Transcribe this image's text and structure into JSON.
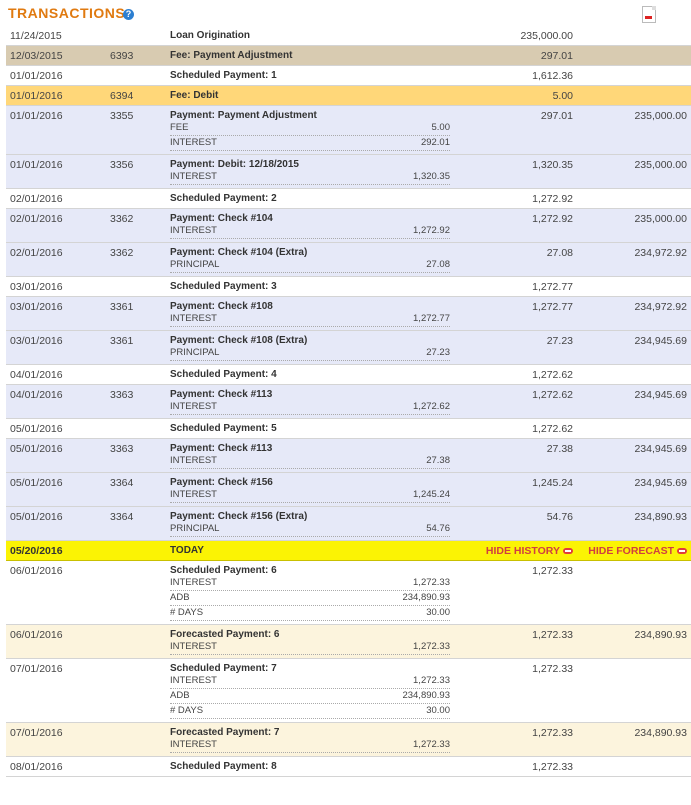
{
  "header": {
    "title": "TRANSACTIONS",
    "help_glyph": "?"
  },
  "today_row": {
    "date": "05/20/2016",
    "label": "TODAY",
    "hide_history": "HIDE HISTORY",
    "hide_forecast": "HIDE FORECAST"
  },
  "rows_before": [
    {
      "date": "11/24/2015",
      "ref": "",
      "desc": "Loan Origination",
      "amount": "235,000.00",
      "balance": "",
      "kind": "sched",
      "sub": []
    },
    {
      "date": "12/03/2015",
      "ref": "6393",
      "desc": "Fee: Payment Adjustment",
      "amount": "297.01",
      "balance": "",
      "kind": "fee",
      "sub": []
    },
    {
      "date": "01/01/2016",
      "ref": "",
      "desc": "Scheduled Payment: 1",
      "amount": "1,612.36",
      "balance": "",
      "kind": "sched",
      "sub": []
    },
    {
      "date": "01/01/2016",
      "ref": "6394",
      "desc": "Fee: Debit",
      "amount": "5.00",
      "balance": "",
      "kind": "feeorange",
      "sub": []
    },
    {
      "date": "01/01/2016",
      "ref": "3355",
      "desc": "Payment: Payment Adjustment",
      "amount": "297.01",
      "balance": "235,000.00",
      "kind": "actual",
      "sub": [
        {
          "label": "FEE",
          "value": "5.00"
        },
        {
          "label": "INTEREST",
          "value": "292.01"
        }
      ]
    },
    {
      "date": "01/01/2016",
      "ref": "3356",
      "desc": "Payment: Debit: 12/18/2015",
      "amount": "1,320.35",
      "balance": "235,000.00",
      "kind": "actual",
      "sub": [
        {
          "label": "INTEREST",
          "value": "1,320.35"
        }
      ]
    },
    {
      "date": "02/01/2016",
      "ref": "",
      "desc": "Scheduled Payment: 2",
      "amount": "1,272.92",
      "balance": "",
      "kind": "sched",
      "sub": []
    },
    {
      "date": "02/01/2016",
      "ref": "3362",
      "desc": "Payment: Check #104",
      "amount": "1,272.92",
      "balance": "235,000.00",
      "kind": "actual",
      "sub": [
        {
          "label": "INTEREST",
          "value": "1,272.92"
        }
      ]
    },
    {
      "date": "02/01/2016",
      "ref": "3362",
      "desc": "Payment: Check #104 (Extra)",
      "amount": "27.08",
      "balance": "234,972.92",
      "kind": "actual",
      "sub": [
        {
          "label": "PRINCIPAL",
          "value": "27.08"
        }
      ]
    },
    {
      "date": "03/01/2016",
      "ref": "",
      "desc": "Scheduled Payment: 3",
      "amount": "1,272.77",
      "balance": "",
      "kind": "sched",
      "sub": []
    },
    {
      "date": "03/01/2016",
      "ref": "3361",
      "desc": "Payment: Check #108",
      "amount": "1,272.77",
      "balance": "234,972.92",
      "kind": "actual",
      "sub": [
        {
          "label": "INTEREST",
          "value": "1,272.77"
        }
      ]
    },
    {
      "date": "03/01/2016",
      "ref": "3361",
      "desc": "Payment: Check #108 (Extra)",
      "amount": "27.23",
      "balance": "234,945.69",
      "kind": "actual",
      "sub": [
        {
          "label": "PRINCIPAL",
          "value": "27.23"
        }
      ]
    },
    {
      "date": "04/01/2016",
      "ref": "",
      "desc": "Scheduled Payment: 4",
      "amount": "1,272.62",
      "balance": "",
      "kind": "sched",
      "sub": []
    },
    {
      "date": "04/01/2016",
      "ref": "3363",
      "desc": "Payment: Check #113",
      "amount": "1,272.62",
      "balance": "234,945.69",
      "kind": "actual",
      "sub": [
        {
          "label": "INTEREST",
          "value": "1,272.62"
        }
      ]
    },
    {
      "date": "05/01/2016",
      "ref": "",
      "desc": "Scheduled Payment: 5",
      "amount": "1,272.62",
      "balance": "",
      "kind": "sched",
      "sub": []
    },
    {
      "date": "05/01/2016",
      "ref": "3363",
      "desc": "Payment: Check #113",
      "amount": "27.38",
      "balance": "234,945.69",
      "kind": "actual",
      "sub": [
        {
          "label": "INTEREST",
          "value": "27.38"
        }
      ]
    },
    {
      "date": "05/01/2016",
      "ref": "3364",
      "desc": "Payment: Check #156",
      "amount": "1,245.24",
      "balance": "234,945.69",
      "kind": "actual",
      "sub": [
        {
          "label": "INTEREST",
          "value": "1,245.24"
        }
      ]
    },
    {
      "date": "05/01/2016",
      "ref": "3364",
      "desc": "Payment: Check #156 (Extra)",
      "amount": "54.76",
      "balance": "234,890.93",
      "kind": "actual",
      "sub": [
        {
          "label": "PRINCIPAL",
          "value": "54.76"
        }
      ]
    }
  ],
  "rows_after": [
    {
      "date": "06/01/2016",
      "ref": "",
      "desc": "Scheduled Payment: 6",
      "amount": "1,272.33",
      "balance": "",
      "kind": "sched",
      "sub": [
        {
          "label": "INTEREST",
          "value": "1,272.33"
        },
        {
          "label": "ADB",
          "value": "234,890.93"
        },
        {
          "label": "# DAYS",
          "value": "30.00"
        }
      ]
    },
    {
      "date": "06/01/2016",
      "ref": "",
      "desc": "Forecasted Payment: 6",
      "amount": "1,272.33",
      "balance": "234,890.93",
      "kind": "forecast",
      "sub": [
        {
          "label": "INTEREST",
          "value": "1,272.33"
        }
      ]
    },
    {
      "date": "07/01/2016",
      "ref": "",
      "desc": "Scheduled Payment: 7",
      "amount": "1,272.33",
      "balance": "",
      "kind": "sched",
      "sub": [
        {
          "label": "INTEREST",
          "value": "1,272.33"
        },
        {
          "label": "ADB",
          "value": "234,890.93"
        },
        {
          "label": "# DAYS",
          "value": "30.00"
        }
      ]
    },
    {
      "date": "07/01/2016",
      "ref": "",
      "desc": "Forecasted Payment: 7",
      "amount": "1,272.33",
      "balance": "234,890.93",
      "kind": "forecast",
      "sub": [
        {
          "label": "INTEREST",
          "value": "1,272.33"
        }
      ]
    },
    {
      "date": "08/01/2016",
      "ref": "",
      "desc": "Scheduled Payment: 8",
      "amount": "1,272.33",
      "balance": "",
      "kind": "sched",
      "sub": []
    }
  ]
}
